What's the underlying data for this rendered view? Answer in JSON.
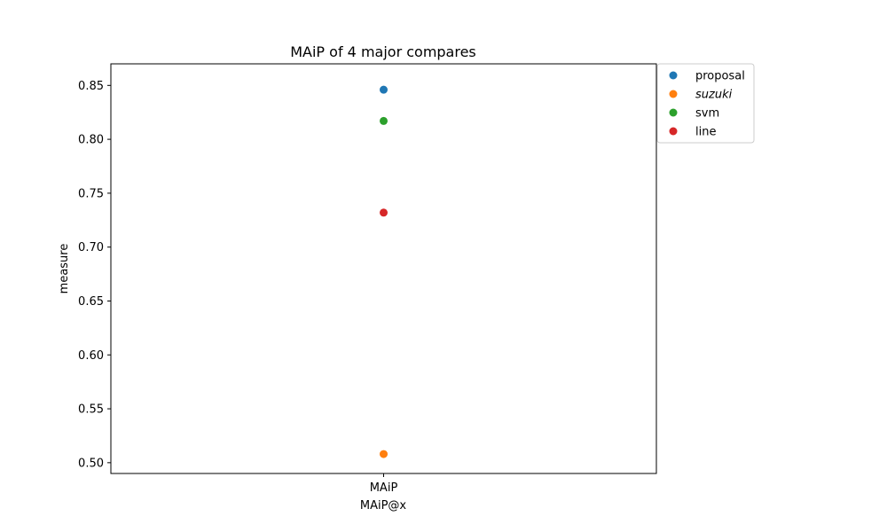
{
  "chart_data": {
    "type": "scatter",
    "title": "MAiP of 4 major compares",
    "xlabel": "MAiP@x",
    "ylabel": "measure",
    "categories": [
      "MAiP"
    ],
    "ylim": [
      0.49,
      0.87
    ],
    "yticks": [
      0.5,
      0.55,
      0.6,
      0.65,
      0.7,
      0.75,
      0.8,
      0.85
    ],
    "ytick_labels": [
      "0.50",
      "0.55",
      "0.60",
      "0.65",
      "0.70",
      "0.75",
      "0.80",
      "0.85"
    ],
    "grid": false,
    "legend_position": "outside-top-right",
    "series": [
      {
        "name": "proposal",
        "italic": false,
        "color": "#1f77b4",
        "values": [
          0.846
        ]
      },
      {
        "name": "suzuki",
        "italic": true,
        "color": "#ff7f0e",
        "values": [
          0.508
        ]
      },
      {
        "name": "svm",
        "italic": false,
        "color": "#2ca02c",
        "values": [
          0.817
        ]
      },
      {
        "name": "line",
        "italic": false,
        "color": "#d62728",
        "values": [
          0.732
        ]
      }
    ]
  }
}
